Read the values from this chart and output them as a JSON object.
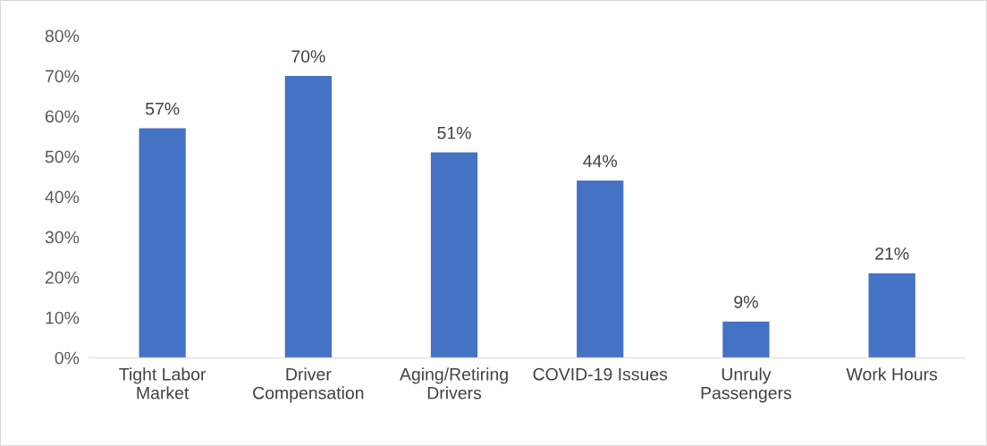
{
  "chart_data": {
    "type": "bar",
    "categories": [
      "Tight Labor\nMarket",
      "Driver\nCompensation",
      "Aging/Retiring\nDrivers",
      "COVID-19 Issues",
      "Unruly\nPassengers",
      "Work Hours"
    ],
    "values": [
      57,
      70,
      51,
      44,
      9,
      21
    ],
    "value_labels": [
      "57%",
      "70%",
      "51%",
      "44%",
      "9%",
      "21%"
    ],
    "color": "#4472c4",
    "ylim": [
      0,
      80
    ],
    "yticks": [
      {
        "value": 0,
        "label": "0%"
      },
      {
        "value": 10,
        "label": "10%"
      },
      {
        "value": 20,
        "label": "20%"
      },
      {
        "value": 30,
        "label": "30%"
      },
      {
        "value": 40,
        "label": "40%"
      },
      {
        "value": 50,
        "label": "50%"
      },
      {
        "value": 60,
        "label": "60%"
      },
      {
        "value": 70,
        "label": "70%"
      },
      {
        "value": 80,
        "label": "80%"
      }
    ],
    "grid": false,
    "legend": false
  }
}
